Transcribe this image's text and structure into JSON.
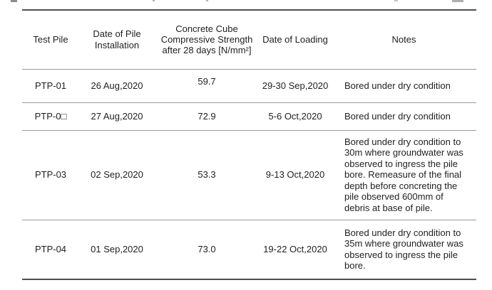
{
  "table": {
    "headers": [
      "Test Pile",
      "Date of Pile Installation",
      "Concrete Cube Compressive Strength after 28 days [N/mm²]",
      "Date of Loading",
      "Notes"
    ],
    "rows": [
      {
        "test_pile": "PTP-01",
        "installation_date": "26 Aug,2020",
        "strength": "59.7",
        "loading_date": "29-30 Sep,2020",
        "notes": "Bored under dry condition"
      },
      {
        "test_pile": "PTP-0□",
        "installation_date": "27 Aug,2020",
        "strength": "72.9",
        "loading_date": "5-6 Oct,2020",
        "notes": "Bored under dry condition"
      },
      {
        "test_pile": "PTP-03",
        "installation_date": "02 Sep,2020",
        "strength": "53.3",
        "loading_date": "9-13 Oct,2020",
        "notes": "Bored under dry condition to 30m where groundwater was observed to ingress the pile bore. Remeasure of the final depth before concreting the pile observed 600mm of debris at base of pile."
      },
      {
        "test_pile": "PTP-04",
        "installation_date": "01 Sep,2020",
        "strength": "73.0",
        "loading_date": "19-22 Oct,2020",
        "notes": "Bored under dry condition to 35m where groundwater was observed to ingress the pile bore."
      }
    ]
  },
  "colors": {
    "outer_rule": "#4f4f4f",
    "inner_rule": "#9b9b9b",
    "text": "#1f1f1f",
    "background": "#ffffff"
  }
}
